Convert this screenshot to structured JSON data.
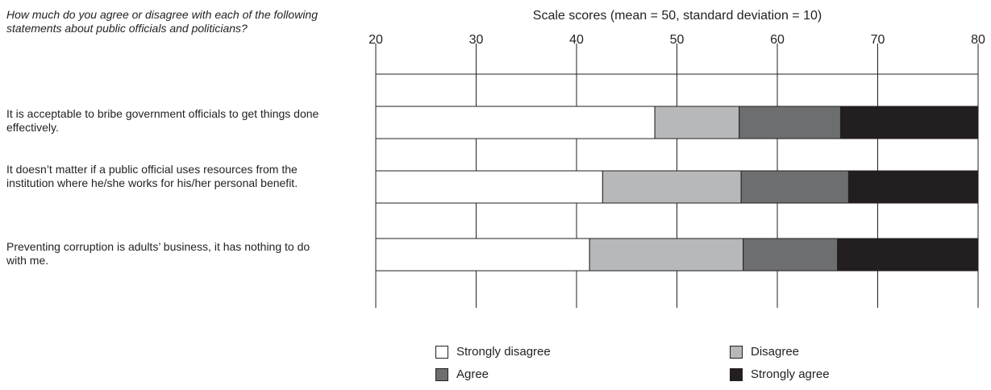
{
  "question": "How much do you agree or disagree with each of the following statements about public officials and politicians?",
  "chart_data": {
    "type": "bar",
    "orientation": "horizontal",
    "stacked": true,
    "title": "Scale scores (mean = 50, standard deviation = 10)",
    "xlim": [
      20,
      80
    ],
    "xticks": [
      20,
      30,
      40,
      50,
      60,
      70,
      80
    ],
    "grid": true,
    "legend_position": "bottom",
    "categories": [
      "It is acceptable to bribe government officials to get things done effectively.",
      "It doesn’t matter if a public official uses resources from the institution where he/she works for his/her personal benefit.",
      "Preventing corruption is adults’ business, it has nothing to do with me."
    ],
    "boundaries": [
      [
        47.8,
        56.2,
        66.3
      ],
      [
        42.6,
        56.4,
        67.1
      ],
      [
        41.3,
        56.6,
        66.0
      ]
    ],
    "series": [
      {
        "name": "Strongly disagree",
        "color": "#ffffff"
      },
      {
        "name": "Disagree",
        "color": "#b7b8ba"
      },
      {
        "name": "Agree",
        "color": "#6d6e70"
      },
      {
        "name": "Strongly agree",
        "color": "#231f20"
      }
    ]
  }
}
